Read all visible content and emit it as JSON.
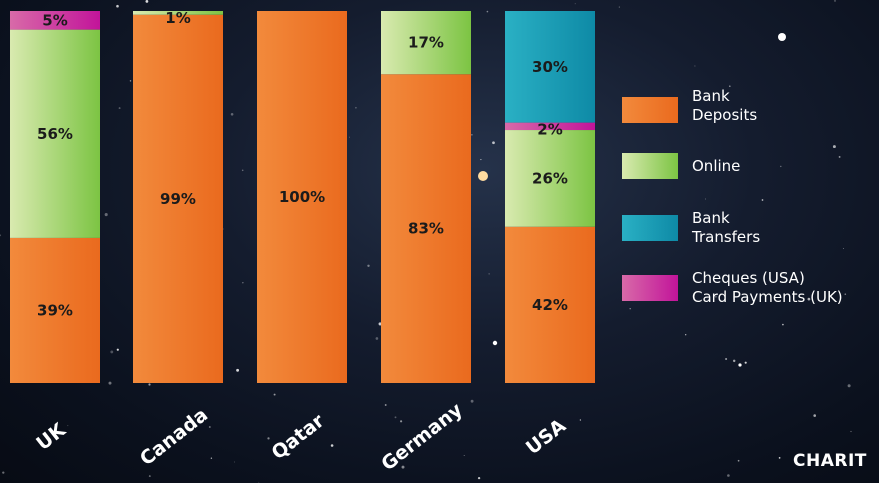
{
  "brand_text": "CHARIT",
  "colors": {
    "bank_deposits": [
      "#f28a3c",
      "#ea6a1e"
    ],
    "online": [
      "#d9eab0",
      "#7cc443"
    ],
    "bank_transfers": [
      "#2ab0c4",
      "#0e8aa6"
    ],
    "cheques_card": [
      "#d86aa8",
      "#c2149a"
    ]
  },
  "legend": [
    {
      "label": "Bank\nDeposits",
      "color_key": "bank_deposits"
    },
    {
      "label": "Online",
      "color_key": "online"
    },
    {
      "label": "Bank\nTransfers",
      "color_key": "bank_transfers"
    },
    {
      "label": "Cheques (USA)\nCard Payments (UK)",
      "color_key": "cheques_card"
    }
  ],
  "chart_data": {
    "type": "bar",
    "stacked": true,
    "categories": [
      "UK",
      "Canada",
      "Qatar",
      "Germany",
      "USA"
    ],
    "series": [
      {
        "name": "Bank Deposits",
        "color_key": "bank_deposits",
        "values": [
          39,
          99,
          100,
          83,
          42
        ],
        "labels": [
          "39%",
          "99%",
          "100%",
          "83%",
          "42%"
        ]
      },
      {
        "name": "Online",
        "color_key": "online",
        "values": [
          56,
          1,
          0,
          17,
          26
        ],
        "labels": [
          "56%",
          "1%",
          "",
          "17%",
          "26%"
        ]
      },
      {
        "name": "Cheques (USA) Card Payments (UK)",
        "color_key": "cheques_card",
        "values": [
          5,
          0,
          0,
          0,
          2
        ],
        "labels": [
          "5%",
          "",
          "",
          "",
          "2%"
        ]
      },
      {
        "name": "Bank Transfers",
        "color_key": "bank_transfers",
        "values": [
          0,
          0,
          0,
          0,
          30
        ],
        "labels": [
          "",
          "",
          "",
          "",
          "30%"
        ]
      }
    ],
    "ylim": [
      0,
      100
    ],
    "legend_position": "right"
  }
}
